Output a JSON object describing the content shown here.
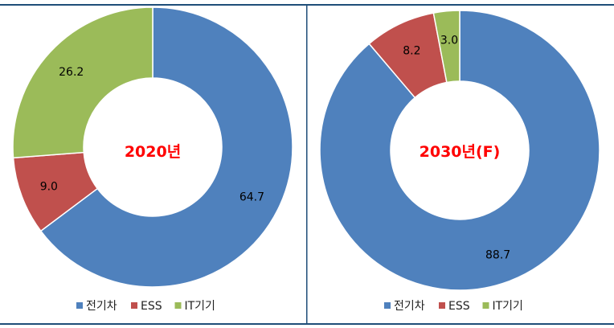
{
  "chart_data": [
    {
      "type": "pie",
      "title": "2020년",
      "categories": [
        "전기차",
        "ESS",
        "IT기기"
      ],
      "values": [
        64.7,
        9.0,
        26.2
      ],
      "colors": [
        "#4f81bd",
        "#c0504d",
        "#9bbb59"
      ],
      "legend": "bottom"
    },
    {
      "type": "pie",
      "title": "2030년(F)",
      "categories": [
        "전기차",
        "ESS",
        "IT기기"
      ],
      "values": [
        88.7,
        8.2,
        3.0
      ],
      "colors": [
        "#4f81bd",
        "#c0504d",
        "#9bbb59"
      ],
      "legend": "bottom"
    }
  ],
  "frame_color": "#1f4e79"
}
